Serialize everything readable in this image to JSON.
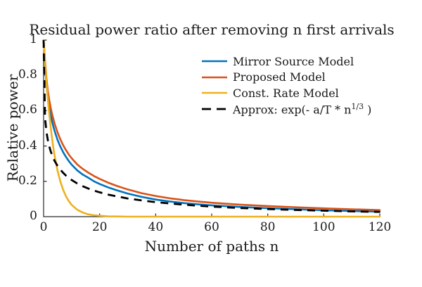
{
  "title": "Residual power ratio after removing n first arrivals",
  "colors": {
    "series_blue": "#0072BD",
    "series_orange": "#D95319",
    "series_yellow": "#EDB120",
    "series_black": "#000000",
    "axis": "#262626",
    "text": "#1a1a1a",
    "background": "#ffffff"
  },
  "legend": {
    "items": [
      {
        "label": "Mirror Source Model",
        "color": "#0072BD",
        "style": "solid"
      },
      {
        "label": "Proposed Model",
        "color": "#D95319",
        "style": "solid"
      },
      {
        "label": "Const. Rate Model",
        "color": "#EDB120",
        "style": "solid"
      },
      {
        "label_prefix": "Approx: exp(- a/T * n",
        "label_sup": "1/3",
        "label_suffix": " )",
        "color": "#000000",
        "style": "dashed"
      }
    ]
  },
  "chart_data": {
    "type": "line",
    "title": "Residual power ratio after removing n first arrivals",
    "xlabel": "Number of paths n",
    "ylabel": "Relative power",
    "xlim": [
      0,
      120
    ],
    "ylim": [
      0,
      1
    ],
    "xticks": [
      0,
      20,
      40,
      60,
      80,
      100,
      120
    ],
    "yticks": [
      0,
      0.2,
      0.4,
      0.6,
      0.8,
      1
    ],
    "grid": false,
    "legend_position": "upper-right-inside",
    "axis_color": "#262626",
    "x": [
      0,
      0.5,
      1,
      1.5,
      2,
      2.5,
      3,
      3.5,
      4,
      5,
      6,
      7,
      8,
      9,
      10,
      12,
      14,
      16,
      18,
      20,
      23,
      26,
      30,
      35,
      40,
      45,
      50,
      55,
      60,
      70,
      80,
      90,
      100,
      110,
      120
    ],
    "series": [
      {
        "name": "Mirror Source Model",
        "color": "#0072BD",
        "style": "solid",
        "values": [
          1.0,
          0.87,
          0.75,
          0.672,
          0.618,
          0.576,
          0.54,
          0.51,
          0.482,
          0.434,
          0.396,
          0.364,
          0.338,
          0.315,
          0.295,
          0.262,
          0.238,
          0.22,
          0.2,
          0.185,
          0.166,
          0.15,
          0.131,
          0.112,
          0.097,
          0.086,
          0.077,
          0.07,
          0.064,
          0.055,
          0.048,
          0.042,
          0.036,
          0.032,
          0.028
        ]
      },
      {
        "name": "Proposed Model",
        "color": "#D95319",
        "style": "solid",
        "values": [
          1.0,
          0.885,
          0.785,
          0.712,
          0.66,
          0.618,
          0.582,
          0.552,
          0.524,
          0.476,
          0.437,
          0.404,
          0.376,
          0.352,
          0.331,
          0.296,
          0.27,
          0.249,
          0.23,
          0.214,
          0.193,
          0.175,
          0.154,
          0.133,
          0.117,
          0.104,
          0.094,
          0.086,
          0.079,
          0.068,
          0.06,
          0.053,
          0.047,
          0.042,
          0.037
        ]
      },
      {
        "name": "Const. Rate Model",
        "color": "#EDB120",
        "style": "solid",
        "values": [
          1.0,
          0.874,
          0.763,
          0.667,
          0.583,
          0.509,
          0.444,
          0.388,
          0.339,
          0.259,
          0.198,
          0.151,
          0.115,
          0.088,
          0.067,
          0.039,
          0.023,
          0.013,
          0.008,
          0.005,
          0.002,
          0.001,
          0.0,
          0.0,
          0.0,
          0.0,
          0.0,
          0.0,
          0.0,
          0.0,
          0.0,
          0.0,
          0.0,
          0.0,
          0.0
        ]
      },
      {
        "name": "Approx: exp(- a/T * n^1/3 )",
        "color": "#000000",
        "style": "dashed",
        "values": [
          1.0,
          0.56,
          0.482,
          0.434,
          0.399,
          0.371,
          0.349,
          0.33,
          0.314,
          0.287,
          0.266,
          0.248,
          0.232,
          0.219,
          0.208,
          0.188,
          0.172,
          0.159,
          0.148,
          0.138,
          0.125,
          0.115,
          0.103,
          0.092,
          0.082,
          0.075,
          0.068,
          0.062,
          0.057,
          0.049,
          0.043,
          0.038,
          0.034,
          0.03,
          0.027
        ]
      }
    ]
  }
}
